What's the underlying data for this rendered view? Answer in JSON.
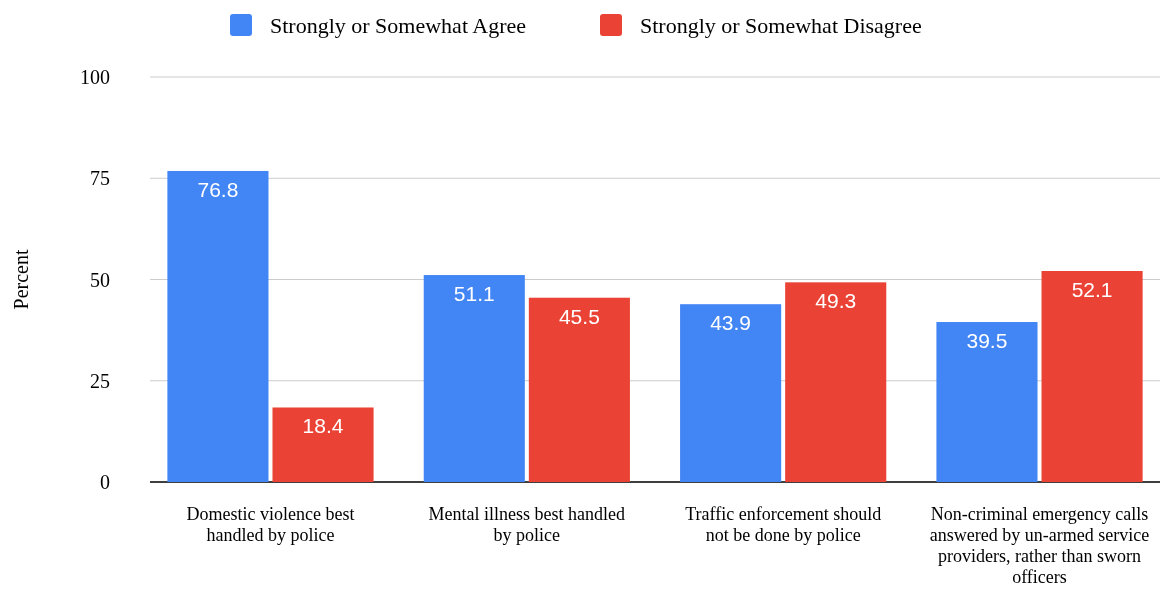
{
  "chart_data": {
    "type": "bar",
    "ylabel": "Percent",
    "categories": [
      "Domestic violence best handled by police",
      "Mental illness best handled by police",
      "Traffic enforcement should not be done by police",
      "Non-criminal emergency calls answered by un-armed service providers, rather than sworn officers"
    ],
    "series": [
      {
        "name": "Strongly or Somewhat Agree",
        "color": "#4285f4",
        "values": [
          76.8,
          51.1,
          43.9,
          39.5
        ]
      },
      {
        "name": "Strongly or Somewhat Disagree",
        "color": "#ea4335",
        "values": [
          18.4,
          45.5,
          49.3,
          52.1
        ]
      }
    ],
    "ylim": [
      0,
      100
    ],
    "yticks": [
      0,
      25,
      50,
      75,
      100
    ],
    "grid": "y",
    "legend": "top",
    "data_labels": true
  }
}
